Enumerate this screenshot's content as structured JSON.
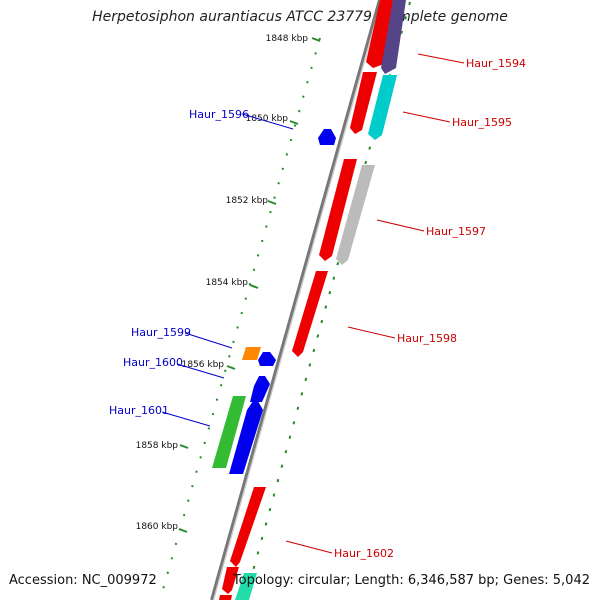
{
  "title": "Herpetosiphon aurantiacus ATCC 23779, complete genome",
  "footer": {
    "accession": "Accession: NC_009972",
    "topology": "Topology: circular; Length: 6,346,587 bp; Genes: 5,042"
  },
  "kbp_ticks": [
    "1848 kbp",
    "1850 kbp",
    "1852 kbp",
    "1854 kbp",
    "1856 kbp",
    "1858 kbp",
    "1860 kbp"
  ],
  "genes": [
    {
      "id": "Haur_1594",
      "strand": "forward",
      "label_color": "#cc0000"
    },
    {
      "id": "Haur_1595",
      "strand": "forward",
      "label_color": "#cc0000"
    },
    {
      "id": "Haur_1596",
      "strand": "reverse",
      "label_color": "#0000cc"
    },
    {
      "id": "Haur_1597",
      "strand": "forward",
      "label_color": "#cc0000"
    },
    {
      "id": "Haur_1598",
      "strand": "forward",
      "label_color": "#cc0000"
    },
    {
      "id": "Haur_1599",
      "strand": "reverse",
      "label_color": "#0000cc"
    },
    {
      "id": "Haur_1600",
      "strand": "reverse",
      "label_color": "#0000cc"
    },
    {
      "id": "Haur_1601",
      "strand": "reverse",
      "label_color": "#0000cc"
    },
    {
      "id": "Haur_1602",
      "strand": "forward",
      "label_color": "#cc0000"
    }
  ],
  "colors": {
    "forward_cds": "#ee0000",
    "reverse_cds": "#0000ee",
    "cog_purple": "#554488",
    "cog_cyan": "#00cccc",
    "cog_grey": "#bbbbbb",
    "cog_orange": "#ff8800",
    "cog_green": "#33bb33",
    "cog_teal": "#22ddaa",
    "backbone": "#888888",
    "gc_ticks": "#2a8a2a"
  }
}
